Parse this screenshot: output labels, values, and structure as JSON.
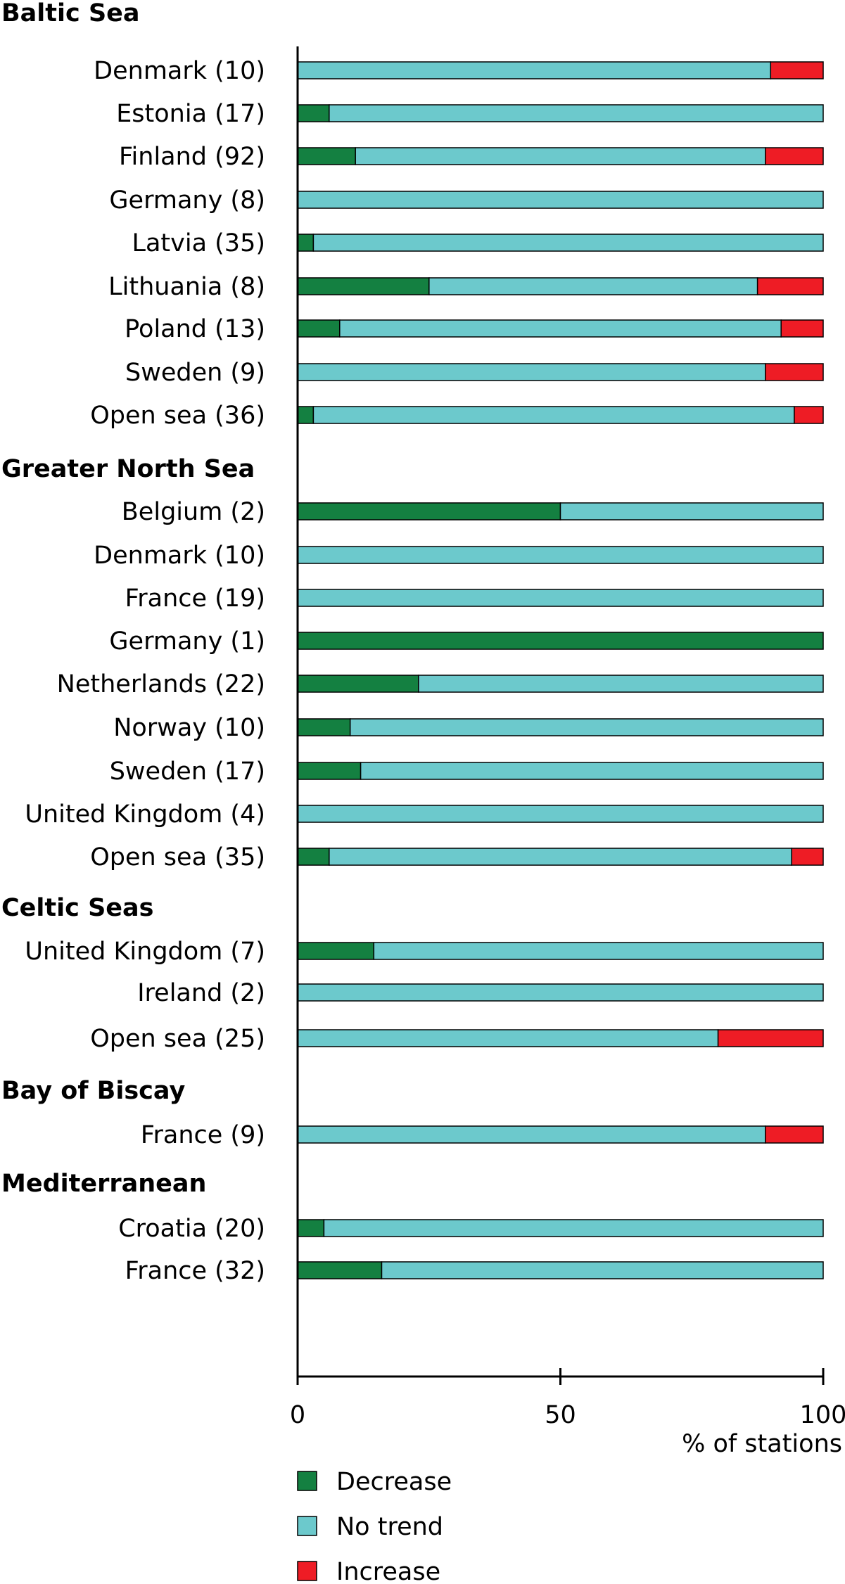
{
  "chart_data": {
    "type": "bar",
    "orientation": "horizontal",
    "stacked": true,
    "xlabel": "% of stations",
    "xlim": [
      0,
      100
    ],
    "xticks": [
      0,
      50,
      100
    ],
    "grid": false,
    "legend_position": "bottom",
    "series": [
      {
        "name": "Decrease",
        "color": "#148041"
      },
      {
        "name": "No trend",
        "color": "#6cc9cc"
      },
      {
        "name": "Increase",
        "color": "#ee1c25"
      }
    ],
    "groups": [
      {
        "name": "Baltic Sea",
        "rows": [
          {
            "label": "Denmark (10)",
            "values": [
              0,
              90,
              10
            ]
          },
          {
            "label": "Estonia (17)",
            "values": [
              6,
              94,
              0
            ]
          },
          {
            "label": "Finland (92)",
            "values": [
              11,
              78,
              11
            ]
          },
          {
            "label": "Germany (8)",
            "values": [
              0,
              100,
              0
            ]
          },
          {
            "label": "Latvia (35)",
            "values": [
              3,
              97,
              0
            ]
          },
          {
            "label": "Lithuania (8)",
            "values": [
              25,
              62.5,
              12.5
            ]
          },
          {
            "label": "Poland (13)",
            "values": [
              8,
              84,
              8
            ]
          },
          {
            "label": "Sweden (9)",
            "values": [
              0,
              89,
              11
            ]
          },
          {
            "label": "Open sea (36)",
            "values": [
              3,
              91.5,
              5.5
            ]
          }
        ]
      },
      {
        "name": "Greater North Sea",
        "rows": [
          {
            "label": "Belgium (2)",
            "values": [
              50,
              50,
              0
            ]
          },
          {
            "label": "Denmark (10)",
            "values": [
              0,
              100,
              0
            ]
          },
          {
            "label": "France (19)",
            "values": [
              0,
              100,
              0
            ]
          },
          {
            "label": "Germany (1)",
            "values": [
              100,
              0,
              0
            ]
          },
          {
            "label": "Netherlands (22)",
            "values": [
              23,
              77,
              0
            ]
          },
          {
            "label": "Norway (10)",
            "values": [
              10,
              90,
              0
            ]
          },
          {
            "label": "Sweden (17)",
            "values": [
              12,
              88,
              0
            ]
          },
          {
            "label": "United Kingdom (4)",
            "values": [
              0,
              100,
              0
            ]
          },
          {
            "label": "Open sea (35)",
            "values": [
              6,
              88,
              6
            ]
          }
        ]
      },
      {
        "name": "Celtic Seas",
        "rows": [
          {
            "label": "United Kingdom (7)",
            "values": [
              14.5,
              85.5,
              0
            ]
          },
          {
            "label": "Ireland (2)",
            "values": [
              0,
              100,
              0
            ]
          },
          {
            "label": "Open sea (25)",
            "values": [
              0,
              80,
              20
            ]
          }
        ]
      },
      {
        "name": "Bay of Biscay",
        "rows": [
          {
            "label": "France (9)",
            "values": [
              0,
              89,
              11
            ]
          }
        ]
      },
      {
        "name": "Mediterranean",
        "rows": [
          {
            "label": "Croatia (20)",
            "values": [
              5,
              95,
              0
            ]
          },
          {
            "label": "France (32)",
            "values": [
              16,
              84,
              0
            ]
          }
        ]
      }
    ]
  }
}
